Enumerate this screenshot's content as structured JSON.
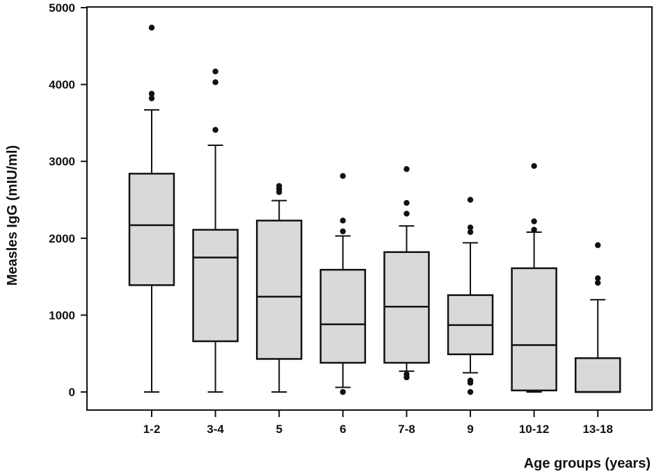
{
  "chart_data": {
    "type": "box",
    "title": "",
    "xlabel": "Age groups (years)",
    "ylabel": "Measles IgG (mIU/ml)",
    "ylim": [
      0,
      5000
    ],
    "yticks": [
      0,
      1000,
      2000,
      3000,
      4000,
      5000
    ],
    "grid": false,
    "categories": [
      "1-2",
      "3-4",
      "5",
      "6",
      "7-8",
      "9",
      "10-12",
      "13-18"
    ],
    "boxes": [
      {
        "category": "1-2",
        "whisker_low": 0,
        "q1": 1390,
        "median": 2170,
        "q3": 2840,
        "whisker_high": 3670,
        "outliers": [
          3820,
          3880,
          4740
        ]
      },
      {
        "category": "3-4",
        "whisker_low": 0,
        "q1": 660,
        "median": 1750,
        "q3": 2110,
        "whisker_high": 3210,
        "outliers": [
          3410,
          4030,
          4170
        ]
      },
      {
        "category": "5",
        "whisker_low": 0,
        "q1": 430,
        "median": 1240,
        "q3": 2230,
        "whisker_high": 2490,
        "outliers": [
          2600,
          2640,
          2680
        ]
      },
      {
        "category": "6",
        "whisker_low": 60,
        "q1": 380,
        "median": 880,
        "q3": 1590,
        "whisker_high": 2030,
        "outliers": [
          0,
          2090,
          2230,
          2810
        ]
      },
      {
        "category": "7-8",
        "whisker_low": 270,
        "q1": 380,
        "median": 1110,
        "q3": 1820,
        "whisker_high": 2160,
        "outliers": [
          190,
          230,
          2320,
          2460,
          2900
        ]
      },
      {
        "category": "9",
        "whisker_low": 250,
        "q1": 490,
        "median": 870,
        "q3": 1260,
        "whisker_high": 1940,
        "outliers": [
          0,
          120,
          150,
          2080,
          2140,
          2500
        ]
      },
      {
        "category": "10-12",
        "whisker_low": 0,
        "q1": 20,
        "median": 610,
        "q3": 1610,
        "whisker_high": 2080,
        "outliers": [
          2110,
          2220,
          2940
        ]
      },
      {
        "category": "13-18",
        "whisker_low": 0,
        "q1": 0,
        "median": 0,
        "q3": 440,
        "whisker_high": 1200,
        "outliers": [
          1420,
          1480,
          1910
        ]
      }
    ]
  },
  "colors": {
    "box_fill": "#d9d9d9",
    "stroke": "#111111",
    "outlier": "#111111"
  }
}
